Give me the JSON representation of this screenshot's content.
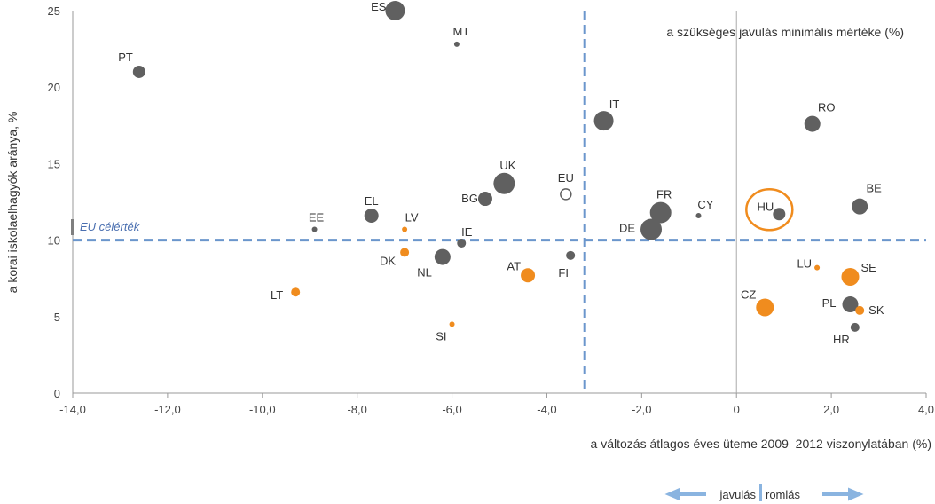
{
  "chart_data": {
    "type": "scatter",
    "xlabel": "a változás átlagos éves üteme 2009–2012 viszonylatában (%)",
    "ylabel": "a korai iskolaelhagyók aránya, %",
    "xlim": [
      -14,
      4
    ],
    "ylim": [
      0,
      25
    ],
    "x_ticks": [
      "-14,0",
      "-12,0",
      "-10,0",
      "-8,0",
      "-6,0",
      "-4,0",
      "-2,0",
      "0",
      "2,0",
      "4,0"
    ],
    "x_tick_values": [
      -14,
      -12,
      -10,
      -8,
      -6,
      -4,
      -2,
      0,
      2,
      4
    ],
    "y_ticks": [
      "0",
      "5",
      "10",
      "15",
      "20",
      "25"
    ],
    "y_tick_values": [
      0,
      5,
      10,
      15,
      20,
      25
    ],
    "grid": false,
    "annotation": "a szükséges javulás minimális mértéke (%)",
    "eu_target_label": "EU célérték",
    "eu_target_value": 10,
    "vertical_reference_x": -3.2,
    "highlighted_point": "HU",
    "colors": {
      "grey": "#606060",
      "orange": "#f08c1e",
      "reference": "#6b96cc",
      "highlight": "#f08c1e",
      "arrow": "#8ab4e0"
    },
    "points": [
      {
        "label": "PT",
        "x": -12.6,
        "y": 21.0,
        "size": 7,
        "color": "grey"
      },
      {
        "label": "ES",
        "x": -7.2,
        "y": 25.0,
        "size": 11,
        "color": "grey"
      },
      {
        "label": "MT",
        "x": -5.9,
        "y": 22.8,
        "size": 3,
        "color": "grey"
      },
      {
        "label": "IT",
        "x": -2.8,
        "y": 17.8,
        "size": 11,
        "color": "grey"
      },
      {
        "label": "RO",
        "x": 1.6,
        "y": 17.6,
        "size": 9,
        "color": "grey"
      },
      {
        "label": "UK",
        "x": -4.9,
        "y": 13.7,
        "size": 12,
        "color": "grey"
      },
      {
        "label": "BG",
        "x": -5.3,
        "y": 12.7,
        "size": 8,
        "color": "grey"
      },
      {
        "label": "EU",
        "x": -3.6,
        "y": 13.0,
        "size": 6,
        "color": "hollow"
      },
      {
        "label": "FR",
        "x": -1.6,
        "y": 11.8,
        "size": 12,
        "color": "grey"
      },
      {
        "label": "CY",
        "x": -0.8,
        "y": 11.6,
        "size": 3,
        "color": "grey"
      },
      {
        "label": "HU",
        "x": 0.9,
        "y": 11.7,
        "size": 7,
        "color": "grey"
      },
      {
        "label": "BE",
        "x": 2.6,
        "y": 12.2,
        "size": 9,
        "color": "grey"
      },
      {
        "label": "DE",
        "x": -1.8,
        "y": 10.7,
        "size": 12,
        "color": "grey"
      },
      {
        "label": "EL",
        "x": -7.7,
        "y": 11.6,
        "size": 8,
        "color": "grey"
      },
      {
        "label": "EE",
        "x": -8.9,
        "y": 10.7,
        "size": 3,
        "color": "grey"
      },
      {
        "label": "LV",
        "x": -7.0,
        "y": 10.7,
        "size": 3,
        "color": "orange"
      },
      {
        "label": "IE",
        "x": -5.8,
        "y": 9.8,
        "size": 5,
        "color": "grey"
      },
      {
        "label": "DK",
        "x": -7.0,
        "y": 9.2,
        "size": 5,
        "color": "orange"
      },
      {
        "label": "NL",
        "x": -6.2,
        "y": 8.9,
        "size": 9,
        "color": "grey"
      },
      {
        "label": "FI",
        "x": -3.5,
        "y": 9.0,
        "size": 5,
        "color": "grey"
      },
      {
        "label": "AT",
        "x": -4.4,
        "y": 7.7,
        "size": 8,
        "color": "orange"
      },
      {
        "label": "LT",
        "x": -9.3,
        "y": 6.6,
        "size": 5,
        "color": "orange"
      },
      {
        "label": "SI",
        "x": -6.0,
        "y": 4.5,
        "size": 3,
        "color": "orange"
      },
      {
        "label": "LU",
        "x": 1.7,
        "y": 8.2,
        "size": 3,
        "color": "orange"
      },
      {
        "label": "SE",
        "x": 2.4,
        "y": 7.6,
        "size": 10,
        "color": "orange"
      },
      {
        "label": "CZ",
        "x": 0.6,
        "y": 5.6,
        "size": 10,
        "color": "orange"
      },
      {
        "label": "PL",
        "x": 2.4,
        "y": 5.8,
        "size": 9,
        "color": "grey"
      },
      {
        "label": "SK",
        "x": 2.6,
        "y": 5.4,
        "size": 5,
        "color": "orange"
      },
      {
        "label": "HR",
        "x": 2.5,
        "y": 4.3,
        "size": 5,
        "color": "grey"
      }
    ],
    "legend": {
      "left": "javulás",
      "right": "romlás"
    }
  }
}
